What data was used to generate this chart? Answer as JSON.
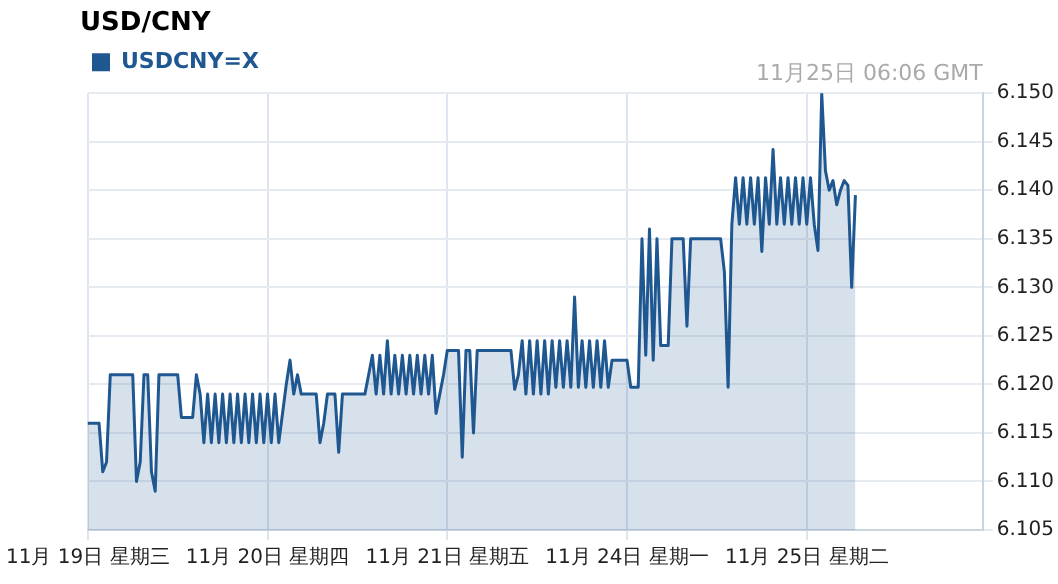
{
  "chart_data": {
    "type": "area",
    "title": "USD/CNY",
    "annotations": [
      "11月25日 06:06 GMT"
    ],
    "categories": [
      "11月 19日 星期三",
      null,
      null,
      null,
      null,
      null,
      null,
      null,
      null,
      null,
      null,
      null,
      null,
      null,
      null,
      null,
      null,
      null,
      null,
      null,
      null,
      null,
      null,
      null,
      null,
      null,
      null,
      null,
      null,
      null,
      null,
      null,
      null,
      null,
      null,
      null,
      null,
      null,
      null,
      null,
      null,
      null,
      null,
      null,
      null,
      null,
      null,
      null,
      "11月 20日 星期四",
      null,
      null,
      null,
      null,
      null,
      null,
      null,
      null,
      null,
      null,
      null,
      null,
      null,
      null,
      null,
      null,
      null,
      null,
      null,
      null,
      null,
      null,
      null,
      null,
      null,
      null,
      null,
      null,
      null,
      null,
      null,
      null,
      null,
      null,
      null,
      null,
      null,
      null,
      null,
      null,
      null,
      null,
      null,
      null,
      null,
      null,
      null,
      "11月 21日 星期五",
      null,
      null,
      null,
      null,
      null,
      null,
      null,
      null,
      null,
      null,
      null,
      null,
      null,
      null,
      null,
      null,
      null,
      null,
      null,
      null,
      null,
      null,
      null,
      null,
      null,
      null,
      null,
      null,
      null,
      null,
      null,
      null,
      null,
      null,
      null,
      null,
      null,
      null,
      null,
      null,
      null,
      null,
      null,
      null,
      null,
      null,
      null,
      "11月 24日 星期一",
      null,
      null,
      null,
      null,
      null,
      null,
      null,
      null,
      null,
      null,
      null,
      null,
      null,
      null,
      null,
      null,
      null,
      null,
      null,
      null,
      null,
      null,
      null,
      null,
      null,
      null,
      null,
      null,
      null,
      null,
      null,
      null,
      null,
      null,
      null,
      null,
      null,
      null,
      null,
      null,
      null,
      null,
      null,
      null,
      null,
      null,
      null,
      "11月 25日 星期二",
      null,
      null,
      null,
      null,
      null,
      null,
      null,
      null,
      null,
      null,
      null,
      null,
      null,
      null,
      null,
      null,
      null,
      null,
      null,
      null,
      null,
      null,
      null,
      null,
      null,
      null,
      null,
      null,
      null,
      null,
      null,
      null,
      null,
      null,
      null,
      null,
      null,
      null,
      null,
      null,
      null,
      null,
      null,
      null,
      null,
      null,
      null
    ],
    "ylim": [
      6.105,
      6.15
    ],
    "yticks": [
      {
        "value": 6.105,
        "label": "6.105"
      },
      {
        "value": 6.11,
        "label": "6.110"
      },
      {
        "value": 6.115,
        "label": "6.115"
      },
      {
        "value": 6.12,
        "label": "6.120"
      },
      {
        "value": 6.125,
        "label": "6.125"
      },
      {
        "value": 6.13,
        "label": "6.130"
      },
      {
        "value": 6.135,
        "label": "6.135"
      },
      {
        "value": 6.14,
        "label": "6.140"
      },
      {
        "value": 6.145,
        "label": "6.145"
      },
      {
        "value": 6.15,
        "label": "6.150"
      }
    ],
    "grid": true,
    "legend": "top left",
    "marker": "none",
    "series": [
      {
        "name": "USDCNY=X",
        "color": "#1f5790",
        "values": [
          6.116,
          6.116,
          6.116,
          6.116,
          6.111,
          6.112,
          6.121,
          6.121,
          6.121,
          6.121,
          6.121,
          6.121,
          6.121,
          6.11,
          6.112,
          6.121,
          6.121,
          6.111,
          6.109,
          6.121,
          6.121,
          6.121,
          6.121,
          6.121,
          6.121,
          6.1166,
          6.1166,
          6.1166,
          6.1166,
          6.121,
          6.119,
          6.114,
          6.119,
          6.114,
          6.119,
          6.114,
          6.119,
          6.114,
          6.119,
          6.114,
          6.119,
          6.114,
          6.119,
          6.114,
          6.119,
          6.114,
          6.119,
          6.114,
          6.119,
          6.114,
          6.119,
          6.114,
          6.117,
          6.12,
          6.1225,
          6.119,
          6.121,
          6.119,
          6.119,
          6.119,
          6.119,
          6.119,
          6.114,
          6.116,
          6.119,
          6.119,
          6.119,
          6.113,
          6.119,
          6.119,
          6.119,
          6.119,
          6.119,
          6.119,
          6.119,
          6.121,
          6.123,
          6.119,
          6.123,
          6.119,
          6.1245,
          6.119,
          6.123,
          6.119,
          6.123,
          6.119,
          6.123,
          6.119,
          6.123,
          6.119,
          6.123,
          6.119,
          6.123,
          6.117,
          6.119,
          6.121,
          6.1235,
          6.1235,
          6.1235,
          6.1235,
          6.1125,
          6.1235,
          6.1235,
          6.115,
          6.1235,
          6.1235,
          6.1235,
          6.1235,
          6.1235,
          6.1235,
          6.1235,
          6.1235,
          6.1235,
          6.1235,
          6.1195,
          6.121,
          6.1245,
          6.119,
          6.1245,
          6.119,
          6.1245,
          6.119,
          6.1245,
          6.119,
          6.1245,
          6.1197,
          6.1245,
          6.1197,
          6.1245,
          6.1197,
          6.129,
          6.1197,
          6.1245,
          6.1197,
          6.1245,
          6.1197,
          6.1245,
          6.1197,
          6.1245,
          6.1197,
          6.1225,
          6.1225,
          6.1225,
          6.1225,
          6.1225,
          6.1197,
          6.1197,
          6.1197,
          6.135,
          6.123,
          6.136,
          6.1225,
          6.135,
          6.124,
          6.124,
          6.124,
          6.135,
          6.135,
          6.135,
          6.135,
          6.126,
          6.135,
          6.135,
          6.135,
          6.135,
          6.135,
          6.135,
          6.135,
          6.135,
          6.135,
          6.1316,
          6.1197,
          6.1365,
          6.1413,
          6.1365,
          6.1413,
          6.1365,
          6.1413,
          6.1365,
          6.1413,
          6.1337,
          6.1413,
          6.1365,
          6.1442,
          6.1365,
          6.1413,
          6.1365,
          6.1413,
          6.1365,
          6.1413,
          6.1365,
          6.1413,
          6.1365,
          6.1413,
          6.1365,
          6.1338,
          6.15,
          6.142,
          6.14,
          6.141,
          6.1385,
          6.14,
          6.141,
          6.1405,
          6.13,
          6.1395,
          null,
          null,
          null,
          null,
          null,
          null,
          null,
          null,
          null,
          null,
          null,
          null,
          null,
          null,
          null,
          null,
          null,
          null,
          null,
          null,
          null,
          null,
          null,
          null,
          null,
          null,
          null,
          null,
          null,
          null,
          null,
          null,
          null,
          null
        ]
      }
    ]
  }
}
